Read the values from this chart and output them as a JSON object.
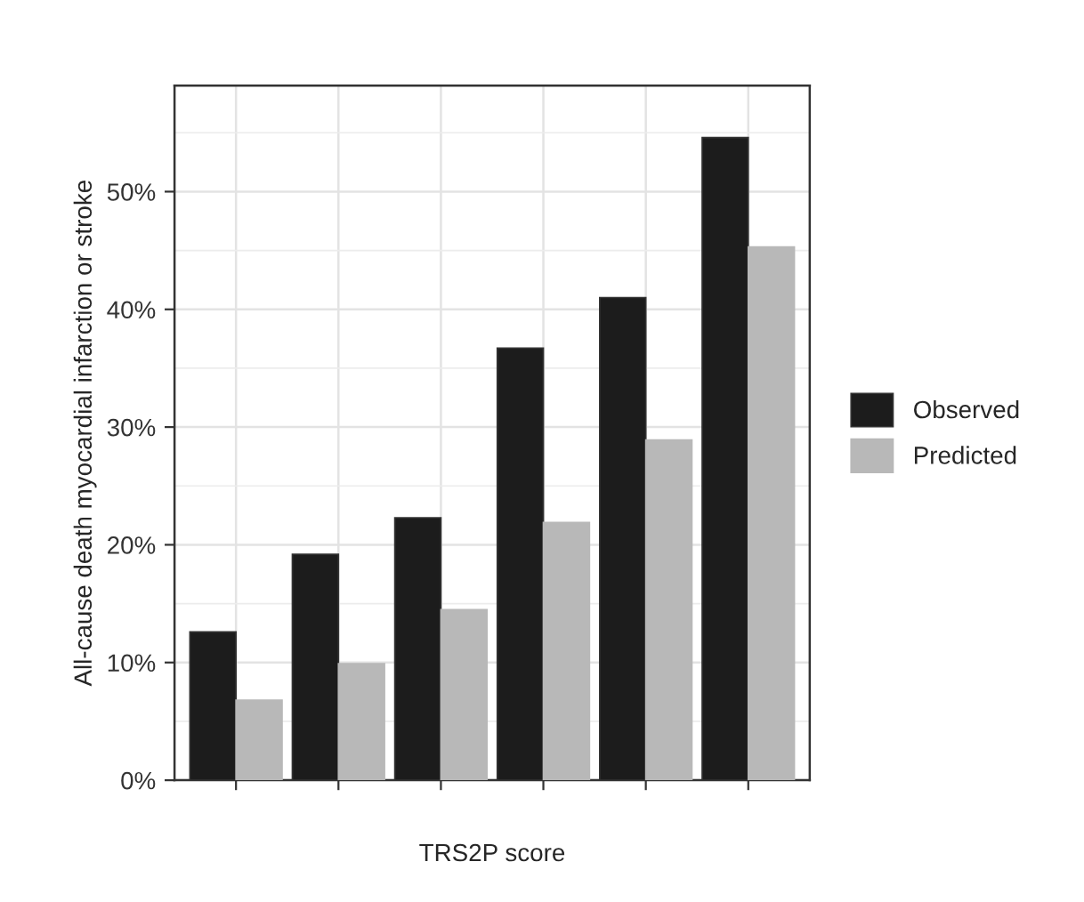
{
  "chart_data": {
    "type": "bar",
    "xlabel": "TRS2P score",
    "ylabel": "All-cause death myocardial infarction or stroke",
    "categories": [
      null,
      null,
      null,
      null,
      null,
      null
    ],
    "series": [
      {
        "name": "Observed",
        "color": "#1c1c1c",
        "values": [
          12.6,
          19.2,
          22.3,
          36.7,
          41.0,
          54.6
        ]
      },
      {
        "name": "Predicted",
        "color": "#b8b8b8",
        "values": [
          6.8,
          9.9,
          14.5,
          21.9,
          28.9,
          45.3
        ]
      }
    ],
    "ylim": [
      0,
      59
    ],
    "yticks": [
      {
        "value": 0,
        "label": "0%"
      },
      {
        "value": 10,
        "label": "10%"
      },
      {
        "value": 20,
        "label": "20%"
      },
      {
        "value": 30,
        "label": "30%"
      },
      {
        "value": 40,
        "label": "40%"
      },
      {
        "value": 50,
        "label": "50%"
      }
    ],
    "grid": true,
    "legend": "right"
  }
}
